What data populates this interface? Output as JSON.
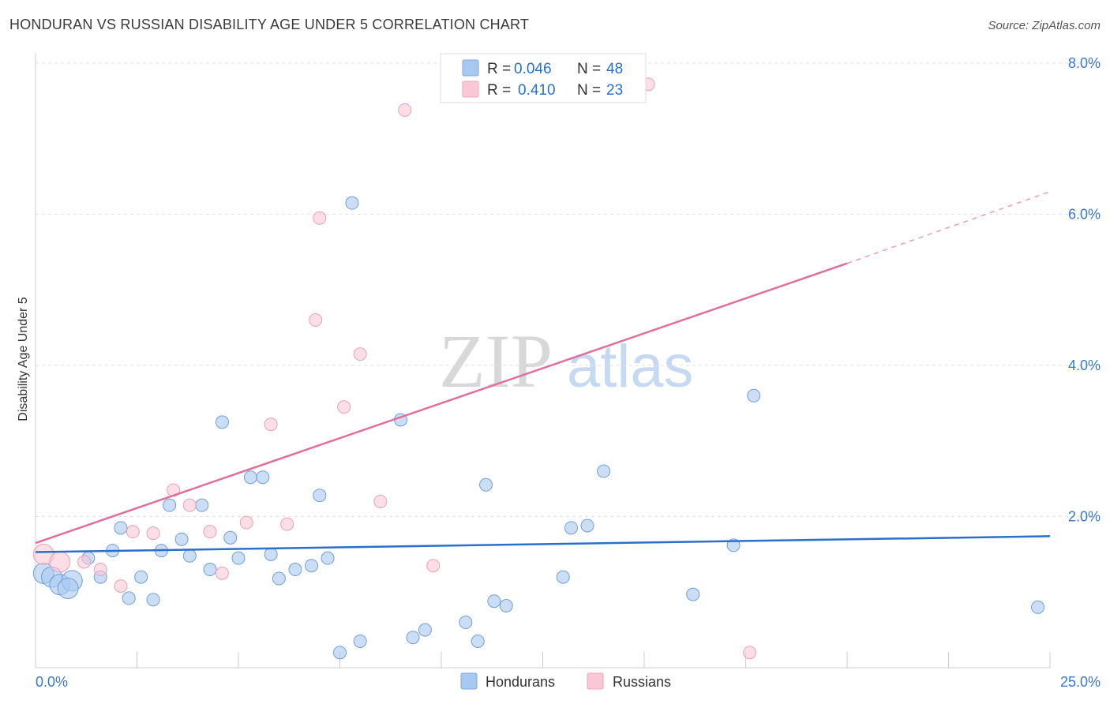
{
  "header": {
    "title": "HONDURAN VS RUSSIAN DISABILITY AGE UNDER 5 CORRELATION CHART",
    "source": "Source: ZipAtlas.com"
  },
  "watermark": {
    "zip": "ZIP",
    "atlas": "atlas"
  },
  "legend": {
    "r_label": "R =",
    "n_label": "N =",
    "entries": [
      {
        "r": "0.046",
        "n": "48"
      },
      {
        "r": "0.410",
        "n": "23"
      }
    ]
  },
  "chart_data": {
    "type": "scatter",
    "title": "HONDURAN VS RUSSIAN DISABILITY AGE UNDER 5 CORRELATION CHART",
    "xlabel": "",
    "ylabel": "Disability Age Under 5",
    "xlim": [
      0,
      25
    ],
    "ylim": [
      0,
      8
    ],
    "x_tick_labels": [
      "0.0%",
      "25.0%"
    ],
    "y_ticks": [
      2,
      4,
      6,
      8
    ],
    "y_tick_labels": [
      "2.0%",
      "4.0%",
      "6.0%",
      "8.0%"
    ],
    "grid": true,
    "legend_position": "top-center",
    "colors": {
      "hondurans": "#a9c8f0",
      "hondurans_line": "#2a6fca",
      "russians": "#f4b5c9",
      "russians_line": "#e0709a",
      "tick_text": "#3a78c9"
    },
    "series": [
      {
        "name": "Hondurans",
        "r": 0.046,
        "n": 48,
        "trend": {
          "x": [
            0,
            25
          ],
          "y": [
            1.53,
            1.74
          ]
        },
        "points": [
          [
            0.2,
            1.25
          ],
          [
            0.4,
            1.2
          ],
          [
            0.6,
            1.1
          ],
          [
            0.9,
            1.15
          ],
          [
            1.3,
            1.45
          ],
          [
            1.6,
            1.2
          ],
          [
            1.9,
            1.55
          ],
          [
            2.1,
            1.85
          ],
          [
            2.3,
            0.92
          ],
          [
            2.6,
            1.2
          ],
          [
            2.9,
            0.9
          ],
          [
            3.1,
            1.55
          ],
          [
            3.3,
            2.15
          ],
          [
            3.6,
            1.7
          ],
          [
            3.8,
            1.48
          ],
          [
            4.1,
            2.15
          ],
          [
            4.3,
            1.3
          ],
          [
            4.6,
            3.25
          ],
          [
            4.8,
            1.72
          ],
          [
            5.0,
            1.45
          ],
          [
            5.3,
            2.52
          ],
          [
            5.6,
            2.52
          ],
          [
            5.8,
            1.5
          ],
          [
            6.0,
            1.18
          ],
          [
            6.4,
            1.3
          ],
          [
            6.8,
            1.35
          ],
          [
            7.0,
            2.28
          ],
          [
            7.2,
            1.45
          ],
          [
            7.5,
            0.2
          ],
          [
            7.8,
            6.15
          ],
          [
            8.0,
            0.35
          ],
          [
            9.0,
            3.28
          ],
          [
            9.3,
            0.4
          ],
          [
            9.6,
            0.5
          ],
          [
            10.6,
            0.6
          ],
          [
            10.9,
            0.35
          ],
          [
            11.1,
            2.42
          ],
          [
            11.3,
            0.88
          ],
          [
            11.6,
            0.82
          ],
          [
            13.0,
            1.2
          ],
          [
            13.2,
            1.85
          ],
          [
            13.6,
            1.88
          ],
          [
            14.0,
            2.6
          ],
          [
            16.2,
            0.97
          ],
          [
            17.2,
            1.62
          ],
          [
            17.7,
            3.6
          ],
          [
            24.7,
            0.8
          ],
          [
            0.8,
            1.05
          ]
        ]
      },
      {
        "name": "Russians",
        "r": 0.41,
        "n": 23,
        "trend": {
          "x": [
            0,
            20
          ],
          "y": [
            1.65,
            5.35
          ]
        },
        "trend_dashed": {
          "x": [
            20,
            25
          ],
          "y": [
            5.35,
            6.3
          ]
        },
        "points": [
          [
            0.2,
            1.5
          ],
          [
            0.6,
            1.4
          ],
          [
            1.2,
            1.4
          ],
          [
            1.6,
            1.3
          ],
          [
            2.1,
            1.08
          ],
          [
            2.4,
            1.8
          ],
          [
            2.9,
            1.78
          ],
          [
            3.4,
            2.35
          ],
          [
            3.8,
            2.15
          ],
          [
            4.3,
            1.8
          ],
          [
            4.6,
            1.25
          ],
          [
            5.2,
            1.92
          ],
          [
            5.8,
            3.22
          ],
          [
            6.2,
            1.9
          ],
          [
            6.9,
            4.6
          ],
          [
            7.0,
            5.95
          ],
          [
            7.6,
            3.45
          ],
          [
            8.0,
            4.15
          ],
          [
            8.5,
            2.2
          ],
          [
            9.1,
            7.38
          ],
          [
            9.8,
            1.35
          ],
          [
            15.1,
            7.72
          ],
          [
            17.6,
            0.2
          ]
        ]
      }
    ]
  },
  "bottom_legend": {
    "items": [
      {
        "label": "Hondurans"
      },
      {
        "label": "Russians"
      }
    ]
  }
}
